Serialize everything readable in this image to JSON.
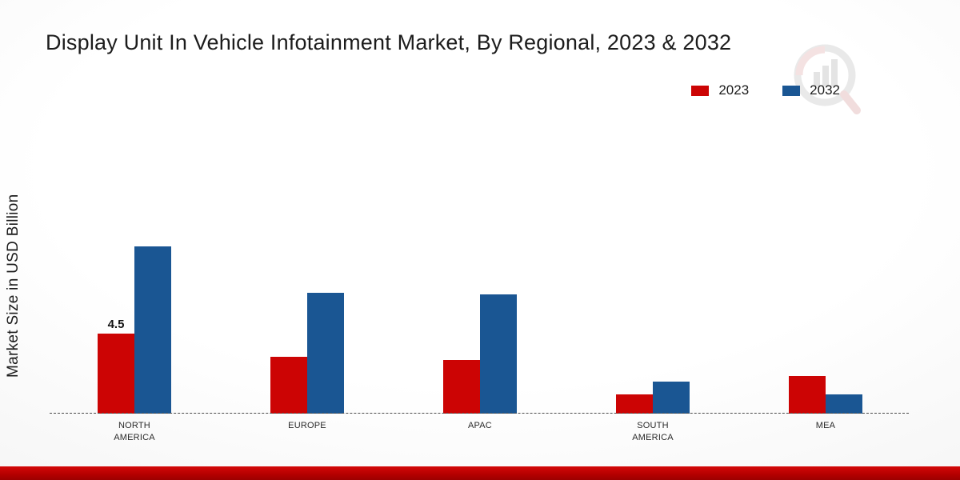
{
  "title": "Display Unit In Vehicle Infotainment Market, By Regional, 2023 & 2032",
  "ylabel": "Market Size in USD Billion",
  "legend": [
    {
      "label": "2023",
      "color": "#cc0404"
    },
    {
      "label": "2032",
      "color": "#1a5693"
    }
  ],
  "colors": {
    "series_2023": "#cc0404",
    "series_2032": "#1a5693",
    "ribbon": "#b30000"
  },
  "chart_data": {
    "type": "bar",
    "title": "Display Unit In Vehicle Infotainment Market, By Regional, 2023 & 2032",
    "categories": [
      "NORTH AMERICA",
      "EUROPE",
      "APAC",
      "SOUTH AMERICA",
      "MEA"
    ],
    "series": [
      {
        "name": "2023",
        "color": "#cc0404",
        "values": [
          4.5,
          3.2,
          3.0,
          1.1,
          2.1
        ]
      },
      {
        "name": "2032",
        "color": "#1a5693",
        "values": [
          9.4,
          6.8,
          6.7,
          1.8,
          1.1
        ]
      }
    ],
    "annotations": [
      {
        "series": 0,
        "category": 0,
        "text": "4.5"
      }
    ],
    "xlabel": "",
    "ylabel": "Market Size in USD Billion",
    "ylim": [
      0,
      10
    ],
    "grid": false,
    "baseline_style": "dashed",
    "legend_position": "top-right"
  }
}
